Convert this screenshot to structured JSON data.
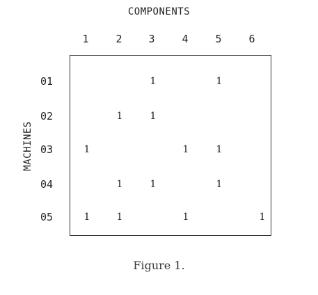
{
  "figure": {
    "top_title": "COMPONENTS",
    "side_title": "MACHINES",
    "caption": "Figure 1.",
    "columns": [
      "1",
      "2",
      "3",
      "4",
      "5",
      "6"
    ],
    "rows": [
      {
        "label": "01",
        "cells": [
          "",
          "",
          "1",
          "",
          "1",
          ""
        ]
      },
      {
        "label": "02",
        "cells": [
          "",
          "1",
          "1",
          "",
          "",
          ""
        ]
      },
      {
        "label": "03",
        "cells": [
          "1",
          "",
          "",
          "1",
          "1",
          ""
        ]
      },
      {
        "label": "04",
        "cells": [
          "",
          "1",
          "1",
          "",
          "1",
          ""
        ]
      },
      {
        "label": "05",
        "cells": [
          "1",
          "1",
          "",
          "1",
          "",
          "1"
        ]
      }
    ]
  }
}
